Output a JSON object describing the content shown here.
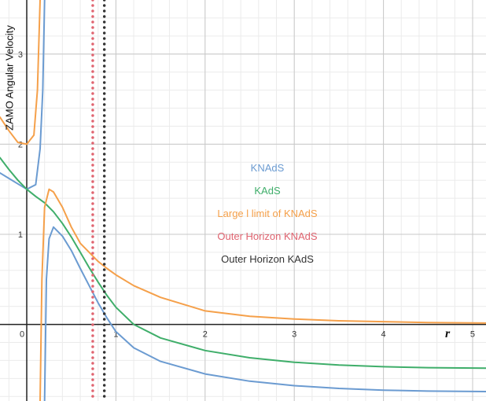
{
  "chart_data": {
    "type": "line",
    "ylabel": "ZAMO Angular Velocity",
    "xlabel": "r",
    "xlim": [
      -0.3,
      5.15
    ],
    "ylim": [
      -0.85,
      3.6
    ],
    "grid": true,
    "x_ticks": [
      "0",
      "1",
      "2",
      "3",
      "4",
      "5"
    ],
    "y_ticks": [
      "1",
      "2",
      "3"
    ],
    "legend_placement": "center",
    "series": [
      {
        "name": "KNAdS",
        "color": "#6b9bd1",
        "segments": [
          [
            [
              -0.3,
              1.68
            ],
            [
              -0.2,
              1.62
            ],
            [
              -0.1,
              1.56
            ],
            [
              0,
              1.5
            ],
            [
              0.1,
              1.55
            ],
            [
              0.15,
              1.95
            ],
            [
              0.18,
              2.6
            ],
            [
              0.2,
              3.6
            ]
          ],
          [
            [
              0.2,
              -0.85
            ],
            [
              0.22,
              0.5
            ],
            [
              0.25,
              0.95
            ],
            [
              0.3,
              1.08
            ],
            [
              0.4,
              0.98
            ],
            [
              0.5,
              0.82
            ],
            [
              0.6,
              0.62
            ],
            [
              0.7,
              0.43
            ],
            [
              0.8,
              0.24
            ],
            [
              0.9,
              0.07
            ],
            [
              1.0,
              -0.08
            ],
            [
              1.2,
              -0.26
            ],
            [
              1.5,
              -0.41
            ],
            [
              2.0,
              -0.55
            ],
            [
              2.5,
              -0.63
            ],
            [
              3.0,
              -0.68
            ],
            [
              3.5,
              -0.71
            ],
            [
              4.0,
              -0.73
            ],
            [
              4.5,
              -0.74
            ],
            [
              5.15,
              -0.745
            ]
          ]
        ]
      },
      {
        "name": "KAdS",
        "color": "#3fae6a",
        "segments": [
          [
            [
              -0.3,
              1.85
            ],
            [
              -0.2,
              1.72
            ],
            [
              -0.1,
              1.6
            ],
            [
              0,
              1.5
            ],
            [
              0.1,
              1.42
            ],
            [
              0.2,
              1.35
            ],
            [
              0.3,
              1.25
            ],
            [
              0.4,
              1.12
            ],
            [
              0.5,
              0.97
            ],
            [
              0.6,
              0.8
            ],
            [
              0.7,
              0.63
            ],
            [
              0.8,
              0.47
            ],
            [
              0.9,
              0.32
            ],
            [
              1.0,
              0.19
            ],
            [
              1.2,
              0
            ],
            [
              1.5,
              -0.15
            ],
            [
              2.0,
              -0.29
            ],
            [
              2.5,
              -0.37
            ],
            [
              3.0,
              -0.42
            ],
            [
              3.5,
              -0.45
            ],
            [
              4.0,
              -0.47
            ],
            [
              4.5,
              -0.48
            ],
            [
              5.15,
              -0.485
            ]
          ]
        ]
      },
      {
        "name": "Large l limit of KNAdS",
        "color": "#f5a04a",
        "segments": [
          [
            [
              -0.3,
              2.3
            ],
            [
              -0.2,
              2.15
            ],
            [
              -0.1,
              2.02
            ],
            [
              0,
              2.0
            ],
            [
              0.08,
              2.1
            ],
            [
              0.12,
              2.6
            ],
            [
              0.15,
              3.6
            ]
          ],
          [
            [
              0.15,
              -0.85
            ],
            [
              0.17,
              0.5
            ],
            [
              0.2,
              1.3
            ],
            [
              0.25,
              1.5
            ],
            [
              0.3,
              1.47
            ],
            [
              0.4,
              1.3
            ],
            [
              0.5,
              1.08
            ],
            [
              0.6,
              0.9
            ],
            [
              0.7,
              0.8
            ],
            [
              0.8,
              0.7
            ],
            [
              0.9,
              0.62
            ],
            [
              1.0,
              0.55
            ],
            [
              1.2,
              0.43
            ],
            [
              1.5,
              0.3
            ],
            [
              2.0,
              0.15
            ],
            [
              2.5,
              0.09
            ],
            [
              3.0,
              0.06
            ],
            [
              3.5,
              0.04
            ],
            [
              4.0,
              0.03
            ],
            [
              4.5,
              0.02
            ],
            [
              5.15,
              0.015
            ]
          ]
        ]
      },
      {
        "name": "Outer Horizon KNAdS",
        "color": "#e06470",
        "vline": 0.74
      },
      {
        "name": "Outer Horizon KAdS",
        "color": "#333333",
        "vline": 0.87
      }
    ]
  }
}
